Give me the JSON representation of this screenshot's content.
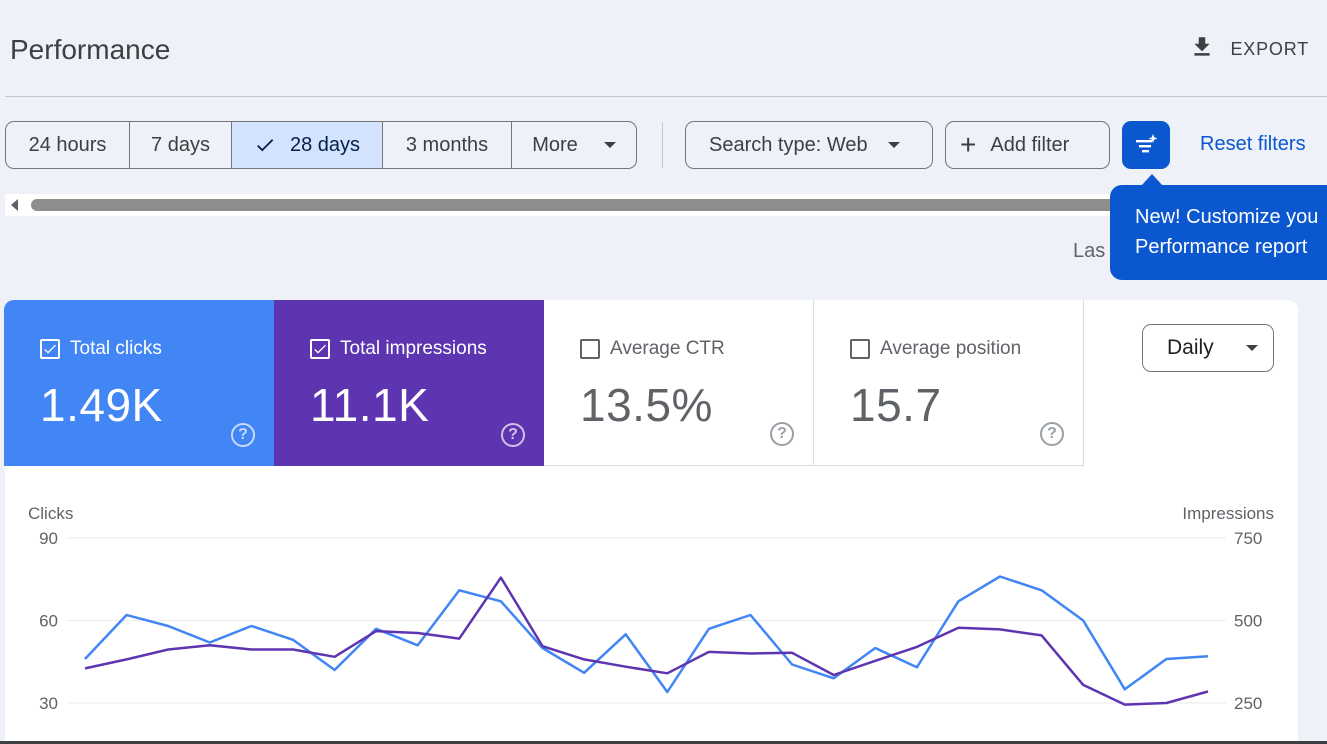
{
  "header": {
    "title": "Performance",
    "export_label": "EXPORT",
    "export_icon": "download-icon"
  },
  "date_range": {
    "options": [
      {
        "label": "24 hours",
        "selected": false
      },
      {
        "label": "7 days",
        "selected": false
      },
      {
        "label": "28 days",
        "selected": true
      },
      {
        "label": "3 months",
        "selected": false
      },
      {
        "label": "More",
        "selected": false
      }
    ]
  },
  "filters": {
    "search_type_label": "Search type: Web",
    "add_filter_label": "Add filter",
    "customize_icon": "customize-sparkle-icon",
    "reset_label": "Reset filters"
  },
  "tooltip": {
    "line1": "New! Customize you",
    "line2": "Performance report"
  },
  "last_updated_partial": "Las",
  "metrics": {
    "clicks": {
      "label": "Total clicks",
      "value": "1.49K",
      "checked": true,
      "color": "#4285f4"
    },
    "impressions": {
      "label": "Total impressions",
      "value": "11.1K",
      "checked": true,
      "color": "#5e35b1"
    },
    "ctr": {
      "label": "Average CTR",
      "value": "13.5%",
      "checked": false
    },
    "position": {
      "label": "Average position",
      "value": "15.7",
      "checked": false
    }
  },
  "granularity": {
    "selected": "Daily"
  },
  "chart_data": {
    "type": "line",
    "left_axis": {
      "title": "Clicks",
      "ticks": [
        "90",
        "60",
        "30"
      ],
      "range": [
        30,
        90
      ]
    },
    "right_axis": {
      "title": "Impressions",
      "ticks": [
        "750",
        "500",
        "250"
      ],
      "range": [
        250,
        750
      ]
    },
    "grid": true,
    "series": [
      {
        "name": "Clicks",
        "axis": "left",
        "color": "#4285f4",
        "values": [
          46,
          62,
          58,
          52,
          58,
          53,
          42,
          57,
          51,
          71,
          67,
          50,
          41,
          55,
          34,
          57,
          62,
          44,
          39,
          50,
          43,
          67,
          76,
          71,
          60,
          35,
          46,
          47
        ]
      },
      {
        "name": "Impressions",
        "axis": "right",
        "color": "#5e35b1",
        "values": [
          355,
          382,
          412,
          425,
          412,
          412,
          390,
          468,
          462,
          445,
          630,
          422,
          382,
          360,
          340,
          405,
          400,
          402,
          335,
          378,
          420,
          478,
          473,
          455,
          305,
          245,
          250,
          285
        ]
      }
    ]
  }
}
